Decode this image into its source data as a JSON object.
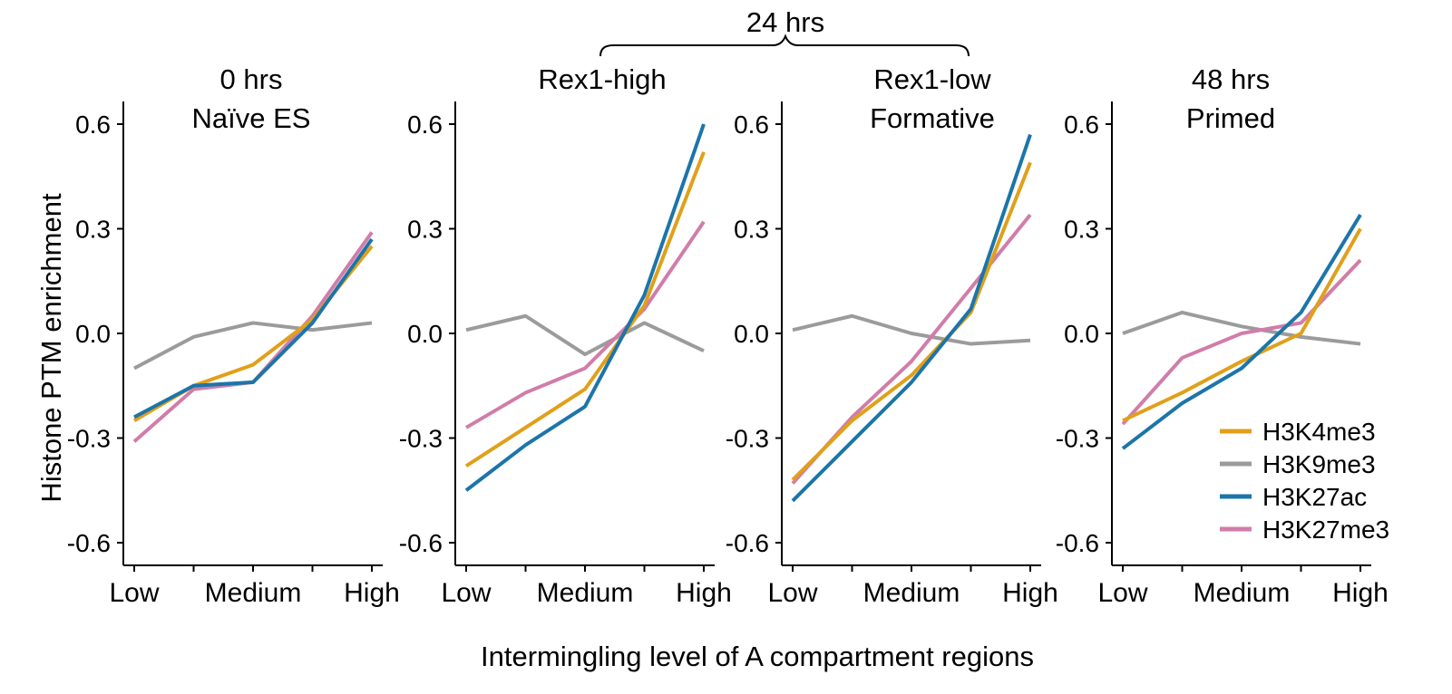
{
  "chart_data": {
    "type": "line",
    "ylabel": "Histone PTM enrichment",
    "xlabel": "Intermingling level of A compartment regions",
    "group_label": "24 hrs",
    "x_tick_labels": [
      "Low",
      "Medium",
      "High"
    ],
    "x_points": 5,
    "yticks": [
      0.6,
      0.3,
      0.0,
      -0.3,
      -0.6
    ],
    "ytick_labels": [
      "0.6",
      "0.3",
      "0.0",
      "-0.3",
      "-0.6"
    ],
    "ylim": [
      -0.66,
      0.66
    ],
    "grid": false,
    "legend_position": "bottom-right",
    "series_meta": [
      {
        "name": "H3K4me3",
        "color": "#E1A01A"
      },
      {
        "name": "H3K9me3",
        "color": "#9B9B9B"
      },
      {
        "name": "H3K27ac",
        "color": "#1C75A9"
      },
      {
        "name": "H3K27me3",
        "color": "#D07DAA"
      }
    ],
    "panels": [
      {
        "title_line1": "0 hrs",
        "title_line2": "Naïve ES",
        "series": [
          {
            "name": "H3K4me3",
            "values": [
              -0.25,
              -0.15,
              -0.09,
              0.04,
              0.25
            ]
          },
          {
            "name": "H3K9me3",
            "values": [
              -0.1,
              -0.01,
              0.03,
              0.01,
              0.03
            ]
          },
          {
            "name": "H3K27ac",
            "values": [
              -0.24,
              -0.15,
              -0.14,
              0.03,
              0.27
            ]
          },
          {
            "name": "H3K27me3",
            "values": [
              -0.31,
              -0.16,
              -0.14,
              0.05,
              0.29
            ]
          }
        ]
      },
      {
        "title_line1": "Rex1-high",
        "title_line2": "",
        "series": [
          {
            "name": "H3K4me3",
            "values": [
              -0.38,
              -0.27,
              -0.16,
              0.08,
              0.52
            ]
          },
          {
            "name": "H3K9me3",
            "values": [
              0.01,
              0.05,
              -0.06,
              0.03,
              -0.05
            ]
          },
          {
            "name": "H3K27ac",
            "values": [
              -0.45,
              -0.32,
              -0.21,
              0.11,
              0.6
            ]
          },
          {
            "name": "H3K27me3",
            "values": [
              -0.27,
              -0.17,
              -0.1,
              0.07,
              0.32
            ]
          }
        ]
      },
      {
        "title_line1": "Rex1-low",
        "title_line2": "Formative",
        "series": [
          {
            "name": "H3K4me3",
            "values": [
              -0.42,
              -0.25,
              -0.12,
              0.06,
              0.49
            ]
          },
          {
            "name": "H3K9me3",
            "values": [
              0.01,
              0.05,
              0.0,
              -0.03,
              -0.02
            ]
          },
          {
            "name": "H3K27ac",
            "values": [
              -0.48,
              -0.31,
              -0.14,
              0.07,
              0.57
            ]
          },
          {
            "name": "H3K27me3",
            "values": [
              -0.43,
              -0.24,
              -0.08,
              0.13,
              0.34
            ]
          }
        ]
      },
      {
        "title_line1": "48 hrs",
        "title_line2": "Primed",
        "series": [
          {
            "name": "H3K4me3",
            "values": [
              -0.25,
              -0.17,
              -0.08,
              0.0,
              0.3
            ]
          },
          {
            "name": "H3K9me3",
            "values": [
              0.0,
              0.06,
              0.02,
              -0.01,
              -0.03
            ]
          },
          {
            "name": "H3K27ac",
            "values": [
              -0.33,
              -0.2,
              -0.1,
              0.06,
              0.34
            ]
          },
          {
            "name": "H3K27me3",
            "values": [
              -0.26,
              -0.07,
              0.0,
              0.03,
              0.21
            ]
          }
        ]
      }
    ]
  }
}
